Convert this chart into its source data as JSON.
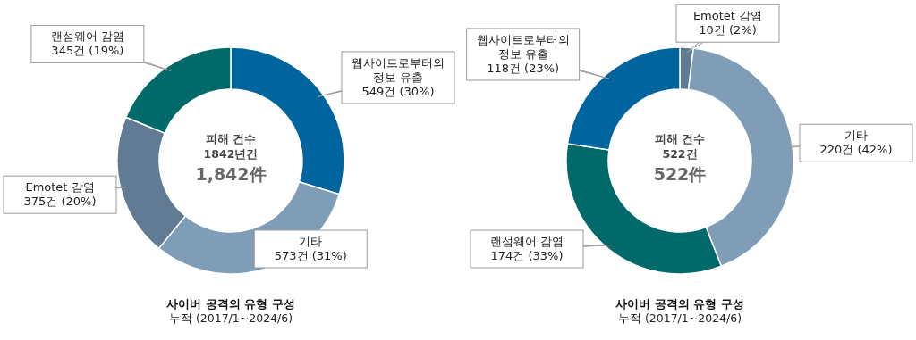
{
  "chart_data": [
    {
      "type": "donut",
      "title": "사이버 공격의 유형 구성",
      "subtitle": "누적 (2017/1~2024/6)",
      "annotations": [
        "피해 건수",
        "1842년건",
        "1,842件"
      ],
      "categories": [
        "웹사이트로부터의 정보 유출",
        "기타",
        "Emotet 감염",
        "랜섬웨어 감염"
      ],
      "values": [
        549,
        573,
        375,
        345
      ],
      "value_labels": [
        "549건 (30%)",
        "573건 (31%)",
        "375건 (20%)",
        "345건 (19%)"
      ],
      "colors": [
        "#00659f",
        "#7f9db6",
        "#607b93",
        "#006a6a"
      ]
    },
    {
      "type": "donut",
      "title": "사이버 공격의 유형 구성",
      "subtitle": "누적 (2017/1~2024/6)",
      "annotations": [
        "피해 건수",
        "522건",
        "522件"
      ],
      "categories": [
        "Emotet 감염",
        "기타",
        "랜섬웨어 감염",
        "웹사이트로부터의 정보 유출"
      ],
      "values": [
        10,
        220,
        174,
        118
      ],
      "value_labels": [
        "10건 (2%)",
        "220건 (42%)",
        "174건 (33%)",
        "118건 (23%)"
      ],
      "colors": [
        "#5f7b92",
        "#7f9db6",
        "#006a6a",
        "#00659f"
      ]
    }
  ]
}
